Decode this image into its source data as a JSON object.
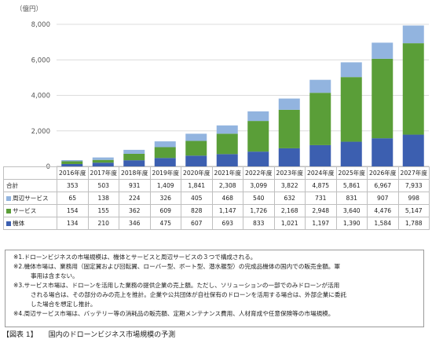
{
  "chart_data": {
    "type": "bar",
    "stacked": true,
    "unit_label": "（億円）",
    "ylim": [
      0,
      8000
    ],
    "yticks": [
      "0",
      "2,000",
      "4,000",
      "6,000",
      "8,000"
    ],
    "ytick_values": [
      0,
      2000,
      4000,
      6000,
      8000
    ],
    "grid": true,
    "categories": [
      "2016年度",
      "2017年度",
      "2018年度",
      "2019年度",
      "2020年度",
      "2021年度",
      "2022年度",
      "2023年度",
      "2024年度",
      "2025年度",
      "2026年度",
      "2027年度"
    ],
    "series": [
      {
        "name": "機体",
        "color": "#3c5fb0",
        "values": [
          134,
          210,
          346,
          475,
          607,
          693,
          833,
          1021,
          1197,
          1390,
          1584,
          1788
        ],
        "labels": [
          "134",
          "210",
          "346",
          "475",
          "607",
          "693",
          "833",
          "1,021",
          "1,197",
          "1,390",
          "1,584",
          "1,788"
        ]
      },
      {
        "name": "サービス",
        "color": "#5a9e38",
        "values": [
          154,
          155,
          362,
          609,
          828,
          1147,
          1726,
          2168,
          2948,
          3640,
          4476,
          5147
        ],
        "labels": [
          "154",
          "155",
          "362",
          "609",
          "828",
          "1,147",
          "1,726",
          "2,168",
          "2,948",
          "3,640",
          "4,476",
          "5,147"
        ]
      },
      {
        "name": "周辺サービス",
        "color": "#92b4df",
        "values": [
          65,
          138,
          224,
          326,
          405,
          468,
          540,
          632,
          731,
          831,
          907,
          998
        ],
        "labels": [
          "65",
          "138",
          "224",
          "326",
          "405",
          "468",
          "540",
          "632",
          "731",
          "831",
          "907",
          "998"
        ]
      }
    ],
    "totals": {
      "name": "合計",
      "values": [
        353,
        503,
        931,
        1409,
        1841,
        2308,
        3099,
        3822,
        4875,
        5861,
        6967,
        7933
      ],
      "labels": [
        "353",
        "503",
        "931",
        "1,409",
        "1,841",
        "2,308",
        "3,099",
        "3,822",
        "4,875",
        "5,861",
        "6,967",
        "7,933"
      ]
    }
  },
  "notes": [
    "※1.ドローンビジネスの市場規模は、機体とサービスと周辺サービスの３つで構成される。",
    "※2.機体市場は、業務用（固定翼および回転翼、ローバー型、ボート型、潜水艦型）の完成品機体の国内での販売金額。軍",
    "事用は含まない。",
    "※3.サービス市場は、ドローンを活用した業務の提供企業の売上額。ただし、ソリューションの一部でのみドローンが活用",
    "される場合は、その部分のみの売上を推計。企業や公共団体が自社保有のドローンを活用する場合は、外部企業に委託",
    "した場合を想定し推計。",
    "※4.周辺サービス市場は、バッテリー等の消耗品の販売額、定期メンテナンス費用、人材育成や任意保険等の市場規模。"
  ],
  "caption": {
    "tag": "【図表 1】",
    "text": "国内のドローンビジネス市場規模の予測"
  }
}
